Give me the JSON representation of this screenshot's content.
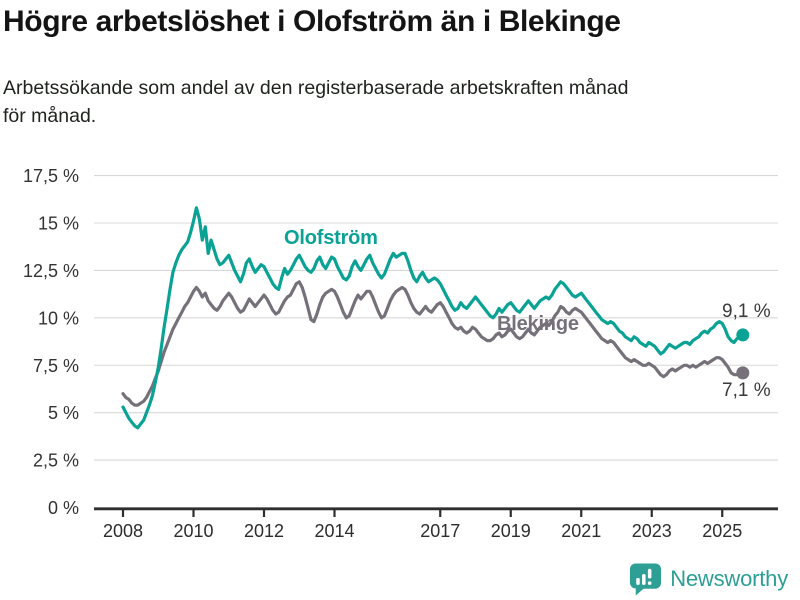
{
  "title": "Högre arbetslöshet i Olofström än i Blekinge",
  "subtitle_line1": "Arbetssökande som andel av den registerbaserade arbetskraften månad",
  "subtitle_line2": "för månad.",
  "footer": {
    "brand": "Newsworthy",
    "brand_color": "#2e9f94",
    "logo_icon": "bar-chart-speech-bubble-icon"
  },
  "chart_data": {
    "type": "line",
    "unit": "%",
    "grid": "horizontal-only",
    "ylim": [
      0,
      17.5
    ],
    "y_ticks": [
      0,
      2.5,
      5,
      7.5,
      10,
      12.5,
      15,
      17.5
    ],
    "y_tick_labels": [
      "0 %",
      "2,5 %",
      "5 %",
      "7,5 %",
      "10 %",
      "12,5 %",
      "15 %",
      "17,5 %"
    ],
    "x_tick_years": [
      2008,
      2010,
      2012,
      2014,
      2017,
      2019,
      2021,
      2023,
      2025
    ],
    "x_tick_labels": [
      "2008",
      "2010",
      "2012",
      "2014",
      "2017",
      "2019",
      "2021",
      "2023",
      "2025"
    ],
    "x_monthly_start": "2008-01",
    "x_monthly_end": "2025-08",
    "axis_color": "#2e2e2e",
    "gridline_color": "#d8d8d8",
    "tick_label_color": "#333333",
    "series": [
      {
        "name": "Olofström",
        "color": "#0aa295",
        "end_label": "9,1 %",
        "end_value": 9.1,
        "values": [
          5.3,
          5.0,
          4.7,
          4.5,
          4.3,
          4.2,
          4.4,
          4.6,
          5.0,
          5.4,
          5.9,
          6.6,
          7.4,
          8.4,
          9.5,
          10.5,
          11.5,
          12.4,
          12.9,
          13.3,
          13.6,
          13.8,
          14.0,
          14.5,
          15.1,
          15.8,
          15.2,
          14.1,
          14.8,
          13.4,
          14.1,
          13.6,
          13.1,
          12.8,
          12.9,
          13.1,
          13.3,
          12.9,
          12.5,
          12.2,
          11.9,
          12.3,
          12.9,
          13.1,
          12.7,
          12.4,
          12.6,
          12.8,
          12.7,
          12.4,
          12.1,
          11.8,
          11.6,
          11.5,
          12.1,
          12.6,
          12.3,
          12.5,
          12.8,
          13.1,
          13.3,
          13.0,
          12.7,
          12.5,
          12.4,
          12.6,
          13.0,
          13.2,
          12.8,
          12.6,
          12.9,
          13.2,
          13.1,
          12.7,
          12.4,
          12.1,
          12.0,
          12.2,
          12.7,
          13.0,
          12.7,
          12.5,
          12.8,
          13.1,
          13.3,
          12.9,
          12.6,
          12.3,
          12.1,
          12.3,
          12.7,
          13.1,
          13.4,
          13.2,
          13.3,
          13.4,
          13.4,
          13.0,
          12.5,
          12.1,
          11.9,
          12.2,
          12.4,
          12.1,
          11.9,
          12.0,
          12.1,
          12.0,
          11.8,
          11.5,
          11.2,
          10.9,
          10.6,
          10.4,
          10.5,
          10.8,
          10.6,
          10.5,
          10.7,
          10.9,
          11.1,
          10.9,
          10.7,
          10.5,
          10.3,
          10.1,
          10.0,
          10.2,
          10.5,
          10.3,
          10.5,
          10.7,
          10.8,
          10.6,
          10.4,
          10.3,
          10.5,
          10.7,
          10.9,
          10.7,
          10.5,
          10.7,
          10.9,
          11.0,
          11.1,
          11.0,
          11.2,
          11.5,
          11.7,
          11.9,
          11.8,
          11.6,
          11.4,
          11.2,
          11.1,
          11.2,
          11.3,
          11.1,
          10.9,
          10.7,
          10.5,
          10.3,
          10.1,
          9.9,
          9.8,
          9.7,
          9.8,
          9.7,
          9.5,
          9.3,
          9.2,
          9.0,
          8.9,
          8.8,
          9.0,
          8.9,
          8.7,
          8.6,
          8.5,
          8.7,
          8.6,
          8.5,
          8.3,
          8.1,
          8.2,
          8.4,
          8.6,
          8.5,
          8.4,
          8.5,
          8.6,
          8.7,
          8.7,
          8.6,
          8.8,
          8.9,
          9.0,
          9.2,
          9.3,
          9.2,
          9.4,
          9.5,
          9.7,
          9.8,
          9.7,
          9.4,
          9.0,
          8.8,
          8.7,
          8.9,
          9.0,
          9.1
        ]
      },
      {
        "name": "Blekinge",
        "color": "#757079",
        "end_label": "7,1 %",
        "end_value": 7.1,
        "values": [
          6.0,
          5.8,
          5.7,
          5.5,
          5.4,
          5.4,
          5.5,
          5.6,
          5.8,
          6.1,
          6.4,
          6.8,
          7.2,
          7.7,
          8.2,
          8.6,
          9.0,
          9.4,
          9.7,
          10.0,
          10.3,
          10.6,
          10.8,
          11.1,
          11.4,
          11.6,
          11.4,
          11.1,
          11.3,
          10.9,
          10.7,
          10.5,
          10.4,
          10.6,
          10.9,
          11.1,
          11.3,
          11.1,
          10.8,
          10.5,
          10.3,
          10.4,
          10.7,
          11.0,
          10.8,
          10.6,
          10.8,
          11.0,
          11.2,
          11.0,
          10.7,
          10.4,
          10.2,
          10.3,
          10.6,
          10.9,
          11.1,
          11.2,
          11.5,
          11.8,
          11.9,
          11.6,
          11.1,
          10.5,
          9.9,
          9.8,
          10.2,
          10.7,
          11.1,
          11.3,
          11.4,
          11.5,
          11.4,
          11.1,
          10.7,
          10.3,
          10.0,
          10.1,
          10.5,
          10.9,
          11.2,
          11.0,
          11.2,
          11.4,
          11.4,
          11.1,
          10.7,
          10.3,
          10.0,
          10.1,
          10.5,
          10.9,
          11.2,
          11.4,
          11.5,
          11.6,
          11.5,
          11.2,
          10.8,
          10.5,
          10.3,
          10.2,
          10.4,
          10.6,
          10.4,
          10.3,
          10.5,
          10.7,
          10.8,
          10.6,
          10.3,
          10.0,
          9.7,
          9.5,
          9.4,
          9.5,
          9.3,
          9.2,
          9.3,
          9.5,
          9.4,
          9.2,
          9.0,
          8.9,
          8.8,
          8.8,
          8.9,
          9.1,
          9.2,
          9.0,
          9.1,
          9.3,
          9.4,
          9.2,
          9.0,
          8.9,
          9.0,
          9.2,
          9.4,
          9.2,
          9.1,
          9.3,
          9.5,
          9.6,
          9.7,
          9.6,
          9.8,
          10.1,
          10.3,
          10.6,
          10.5,
          10.3,
          10.2,
          10.4,
          10.5,
          10.4,
          10.3,
          10.1,
          9.9,
          9.7,
          9.5,
          9.3,
          9.1,
          8.9,
          8.8,
          8.7,
          8.8,
          8.7,
          8.5,
          8.3,
          8.1,
          7.9,
          7.8,
          7.7,
          7.8,
          7.7,
          7.6,
          7.5,
          7.5,
          7.6,
          7.5,
          7.4,
          7.2,
          7.0,
          6.9,
          7.0,
          7.2,
          7.3,
          7.2,
          7.3,
          7.4,
          7.5,
          7.5,
          7.4,
          7.5,
          7.4,
          7.5,
          7.6,
          7.7,
          7.6,
          7.7,
          7.8,
          7.9,
          7.9,
          7.8,
          7.6,
          7.4,
          7.1,
          7.0,
          7.0,
          7.1,
          7.1
        ]
      }
    ]
  }
}
